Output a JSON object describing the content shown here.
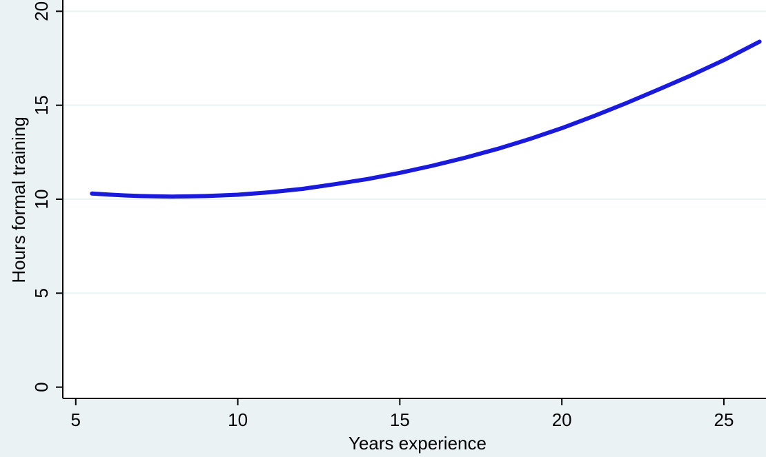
{
  "chart_data": {
    "type": "line",
    "title": "",
    "xlabel": "Years experience",
    "ylabel": "Hours formal training",
    "xlim": [
      4.6,
      26.3
    ],
    "ylim": [
      -0.6,
      20.6
    ],
    "xticks": [
      5,
      10,
      15,
      20,
      25
    ],
    "yticks": [
      0,
      5,
      10,
      15,
      20
    ],
    "grid": "horizontal",
    "colors": {
      "background": "#eaf2f3",
      "plot_background": "#ffffff",
      "line": "#1a1adb",
      "grid": "#eaf2f3",
      "axis": "#000000"
    },
    "series": [
      {
        "x": [
          5.5,
          6,
          6.5,
          7,
          7.5,
          8,
          8.5,
          9,
          9.5,
          10,
          11,
          12,
          13,
          14,
          15,
          16,
          17,
          18,
          19,
          20,
          21,
          22,
          23,
          24,
          25,
          26.1
        ],
        "values": [
          10.3,
          10.25,
          10.2,
          10.17,
          10.15,
          10.14,
          10.15,
          10.17,
          10.2,
          10.24,
          10.37,
          10.55,
          10.8,
          11.07,
          11.4,
          11.78,
          12.2,
          12.67,
          13.2,
          13.78,
          14.43,
          15.12,
          15.85,
          16.6,
          17.4,
          18.38
        ]
      }
    ]
  }
}
